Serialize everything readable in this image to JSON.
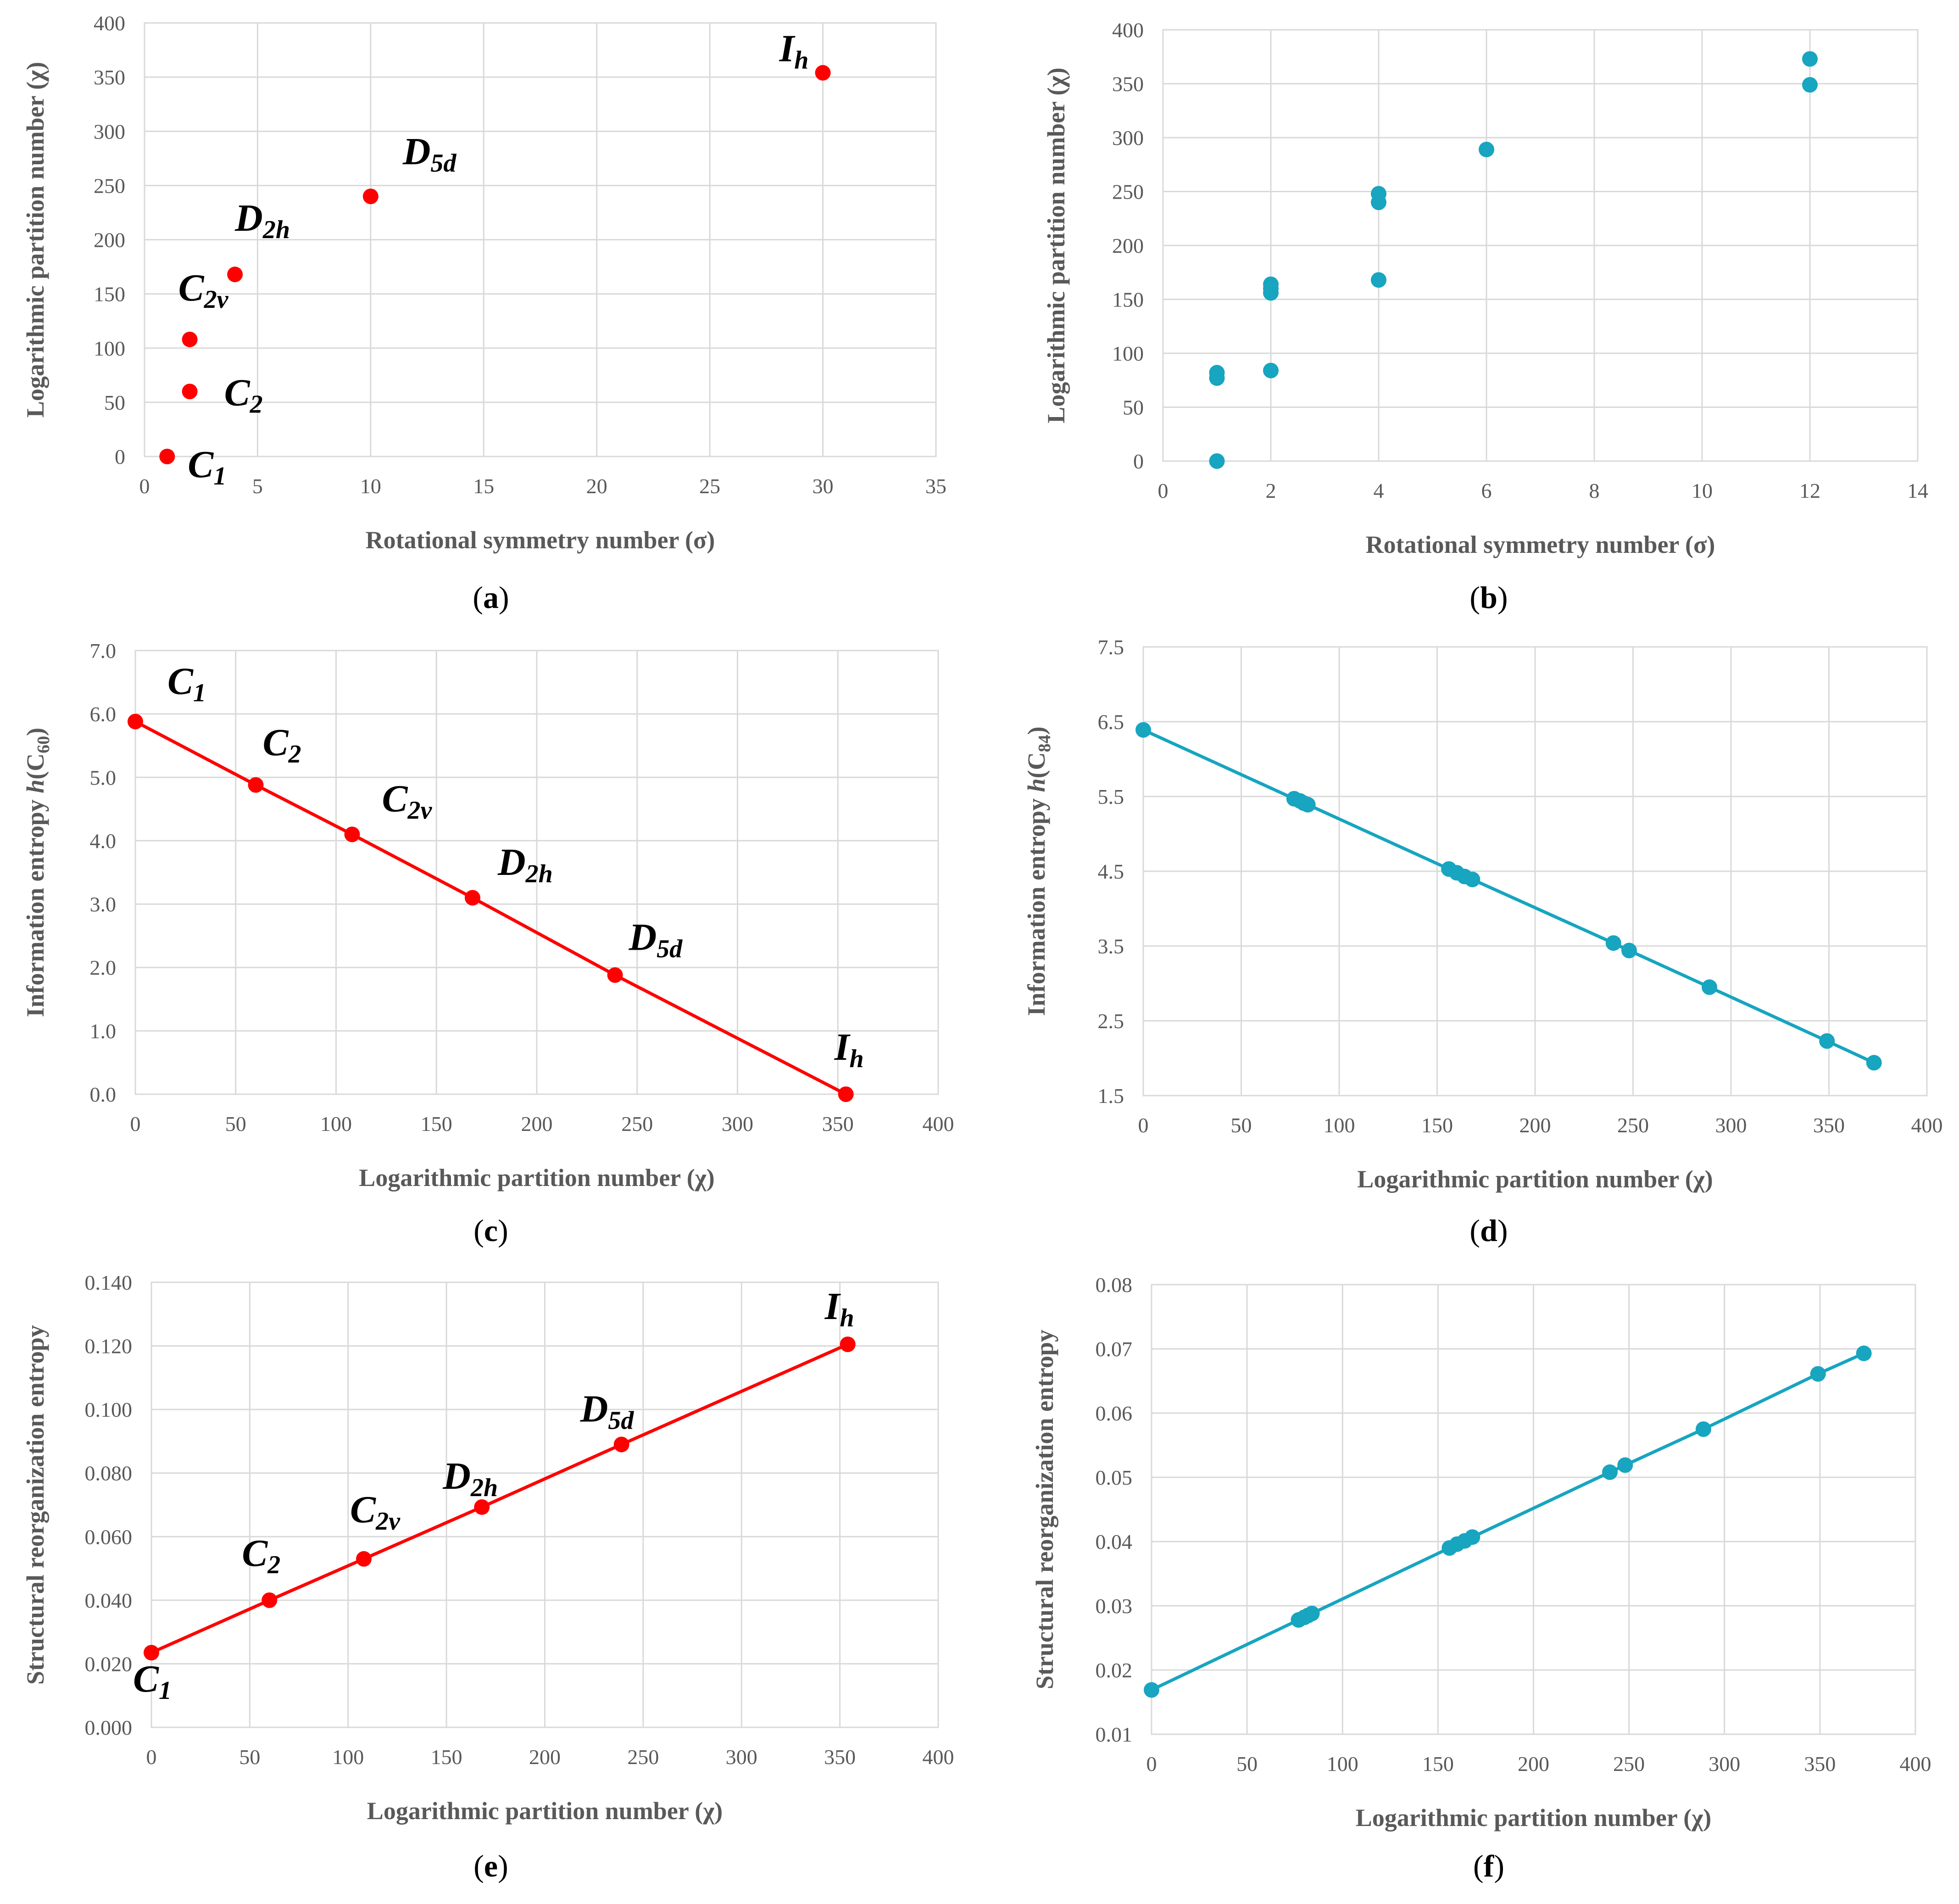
{
  "colors": {
    "red": "#ff0000",
    "teal": "#17a5c0",
    "grid": "#d9d9d9",
    "text": "#595959"
  },
  "chart_data": [
    {
      "id": "a",
      "type": "scatter",
      "caption": "a",
      "color": "#ff0000",
      "xlabel": "Rotational symmetry number (σ)",
      "ylabel": "Logarithmic partition number (χ)",
      "xlim": [
        0,
        35
      ],
      "xticks": [
        0,
        5,
        10,
        15,
        20,
        25,
        30,
        35
      ],
      "xtick_labels": [
        "0",
        "5",
        "10",
        "15",
        "20",
        "25",
        "30",
        "35"
      ],
      "ylim": [
        0,
        400
      ],
      "yticks": [
        0,
        50,
        100,
        150,
        200,
        250,
        300,
        350,
        400
      ],
      "ytick_labels": [
        "0",
        "50",
        "100",
        "150",
        "200",
        "250",
        "300",
        "350",
        "400"
      ],
      "points": [
        {
          "x": 1,
          "y": 0,
          "label": "C",
          "sub": "1"
        },
        {
          "x": 2,
          "y": 60,
          "label": "C",
          "sub": "2"
        },
        {
          "x": 2,
          "y": 108,
          "label": "C",
          "sub": "2v"
        },
        {
          "x": 4,
          "y": 168,
          "label": "D",
          "sub": "2h"
        },
        {
          "x": 10,
          "y": 240,
          "label": "D",
          "sub": "5d"
        },
        {
          "x": 30,
          "y": 354,
          "label": "I",
          "sub": "h"
        }
      ],
      "line": false
    },
    {
      "id": "b",
      "type": "scatter",
      "caption": "b",
      "color": "#17a5c0",
      "xlabel": "Rotational symmetry number (σ)",
      "ylabel": "Logarithmic partition number (χ)",
      "xlim": [
        0,
        14
      ],
      "xticks": [
        0,
        2,
        4,
        6,
        8,
        10,
        12,
        14
      ],
      "xtick_labels": [
        "0",
        "2",
        "4",
        "6",
        "8",
        "10",
        "12",
        "14"
      ],
      "ylim": [
        0,
        400
      ],
      "yticks": [
        0,
        50,
        100,
        150,
        200,
        250,
        300,
        350,
        400
      ],
      "ytick_labels": [
        "0",
        "50",
        "100",
        "150",
        "200",
        "250",
        "300",
        "350",
        "400"
      ],
      "points": [
        {
          "x": 1,
          "y": 0
        },
        {
          "x": 1,
          "y": 77
        },
        {
          "x": 1,
          "y": 82
        },
        {
          "x": 2,
          "y": 84
        },
        {
          "x": 2,
          "y": 156
        },
        {
          "x": 2,
          "y": 160
        },
        {
          "x": 2,
          "y": 164
        },
        {
          "x": 4,
          "y": 168
        },
        {
          "x": 4,
          "y": 240
        },
        {
          "x": 4,
          "y": 248
        },
        {
          "x": 6,
          "y": 289
        },
        {
          "x": 12,
          "y": 349
        },
        {
          "x": 12,
          "y": 373
        }
      ],
      "line": false
    },
    {
      "id": "c",
      "type": "line",
      "caption": "c",
      "color": "#ff0000",
      "xlabel": "Logarithmic partition number (χ)",
      "ylabel": "Information entropy h(C60)",
      "ylabel_parts": [
        "Information entropy ",
        "h",
        "(C",
        "60",
        ")"
      ],
      "xlim": [
        0,
        400
      ],
      "xticks": [
        0,
        50,
        100,
        150,
        200,
        250,
        300,
        350,
        400
      ],
      "xtick_labels": [
        "0",
        "50",
        "100",
        "150",
        "200",
        "250",
        "300",
        "350",
        "400"
      ],
      "ylim": [
        0,
        7
      ],
      "yticks": [
        0,
        1,
        2,
        3,
        4,
        5,
        6,
        7
      ],
      "ytick_labels": [
        "0.0",
        "1.0",
        "2.0",
        "3.0",
        "4.0",
        "5.0",
        "6.0",
        "7.0"
      ],
      "points": [
        {
          "x": 0,
          "y": 5.88,
          "label": "C",
          "sub": "1"
        },
        {
          "x": 60,
          "y": 4.88,
          "label": "C",
          "sub": "2"
        },
        {
          "x": 108,
          "y": 4.1,
          "label": "C",
          "sub": "2v"
        },
        {
          "x": 168,
          "y": 3.1,
          "label": "D",
          "sub": "2h"
        },
        {
          "x": 239,
          "y": 1.88,
          "label": "D",
          "sub": "5d"
        },
        {
          "x": 354,
          "y": 0.0,
          "label": "I",
          "sub": "h"
        }
      ],
      "line": true
    },
    {
      "id": "d",
      "type": "line",
      "caption": "d",
      "color": "#17a5c0",
      "xlabel": "Logarithmic partition number (χ)",
      "ylabel": "Information entropy h(C84)",
      "ylabel_parts": [
        "Information entropy ",
        "h",
        "(C",
        "84",
        ")"
      ],
      "xlim": [
        0,
        400
      ],
      "xticks": [
        0,
        50,
        100,
        150,
        200,
        250,
        300,
        350,
        400
      ],
      "xtick_labels": [
        "0",
        "50",
        "100",
        "150",
        "200",
        "250",
        "300",
        "350",
        "400"
      ],
      "ylim": [
        1.5,
        7.5
      ],
      "yticks": [
        1.5,
        2.5,
        3.5,
        4.5,
        5.5,
        6.5,
        7.5
      ],
      "ytick_labels": [
        "1.5",
        "2.5",
        "3.5",
        "4.5",
        "5.5",
        "6.5",
        "7.5"
      ],
      "points": [
        {
          "x": 0,
          "y": 6.39
        },
        {
          "x": 77,
          "y": 5.47
        },
        {
          "x": 80,
          "y": 5.44
        },
        {
          "x": 82,
          "y": 5.41
        },
        {
          "x": 84,
          "y": 5.39
        },
        {
          "x": 156,
          "y": 4.53
        },
        {
          "x": 160,
          "y": 4.48
        },
        {
          "x": 164,
          "y": 4.43
        },
        {
          "x": 168,
          "y": 4.39
        },
        {
          "x": 240,
          "y": 3.54
        },
        {
          "x": 248,
          "y": 3.44
        },
        {
          "x": 289,
          "y": 2.95
        },
        {
          "x": 349,
          "y": 2.23
        },
        {
          "x": 373,
          "y": 1.94
        }
      ],
      "line": true
    },
    {
      "id": "e",
      "type": "line",
      "caption": "e",
      "color": "#ff0000",
      "xlabel": "Logarithmic partition number (χ)",
      "ylabel": "Structural reorganization entropy",
      "xlim": [
        0,
        400
      ],
      "xticks": [
        0,
        50,
        100,
        150,
        200,
        250,
        300,
        350,
        400
      ],
      "xtick_labels": [
        "0",
        "50",
        "100",
        "150",
        "200",
        "250",
        "300",
        "350",
        "400"
      ],
      "ylim": [
        0,
        0.14
      ],
      "yticks": [
        0,
        0.02,
        0.04,
        0.06,
        0.08,
        0.1,
        0.12,
        0.14
      ],
      "ytick_labels": [
        "0.000",
        "0.020",
        "0.040",
        "0.060",
        "0.080",
        "0.100",
        "0.120",
        "0.140"
      ],
      "points": [
        {
          "x": 0,
          "y": 0.0235,
          "label": "C",
          "sub": "1"
        },
        {
          "x": 60,
          "y": 0.04,
          "label": "C",
          "sub": "2"
        },
        {
          "x": 108,
          "y": 0.053,
          "label": "C",
          "sub": "2v"
        },
        {
          "x": 168,
          "y": 0.0693,
          "label": "D",
          "sub": "2h"
        },
        {
          "x": 239,
          "y": 0.089,
          "label": "D",
          "sub": "5d"
        },
        {
          "x": 354,
          "y": 0.1205,
          "label": "I",
          "sub": "h"
        }
      ],
      "line": true
    },
    {
      "id": "f",
      "type": "line",
      "caption": "f",
      "color": "#17a5c0",
      "xlabel": "Logarithmic partition number (χ)",
      "ylabel": "Structural reorganization entropy",
      "xlim": [
        0,
        400
      ],
      "xticks": [
        0,
        50,
        100,
        150,
        200,
        250,
        300,
        350,
        400
      ],
      "xtick_labels": [
        "0",
        "50",
        "100",
        "150",
        "200",
        "250",
        "300",
        "350",
        "400"
      ],
      "ylim": [
        0.01,
        0.08
      ],
      "yticks": [
        0.01,
        0.02,
        0.03,
        0.04,
        0.05,
        0.06,
        0.07,
        0.08
      ],
      "ytick_labels": [
        "0.01",
        "0.02",
        "0.03",
        "0.04",
        "0.05",
        "0.06",
        "0.07",
        "0.08"
      ],
      "points": [
        {
          "x": 0,
          "y": 0.0169
        },
        {
          "x": 77,
          "y": 0.0278
        },
        {
          "x": 80,
          "y": 0.0282
        },
        {
          "x": 82,
          "y": 0.0285
        },
        {
          "x": 84,
          "y": 0.0288
        },
        {
          "x": 156,
          "y": 0.039
        },
        {
          "x": 160,
          "y": 0.0396
        },
        {
          "x": 164,
          "y": 0.0401
        },
        {
          "x": 168,
          "y": 0.0407
        },
        {
          "x": 240,
          "y": 0.0508
        },
        {
          "x": 248,
          "y": 0.0519
        },
        {
          "x": 289,
          "y": 0.0575
        },
        {
          "x": 349,
          "y": 0.0661
        },
        {
          "x": 373,
          "y": 0.0693
        }
      ],
      "line": true
    }
  ]
}
